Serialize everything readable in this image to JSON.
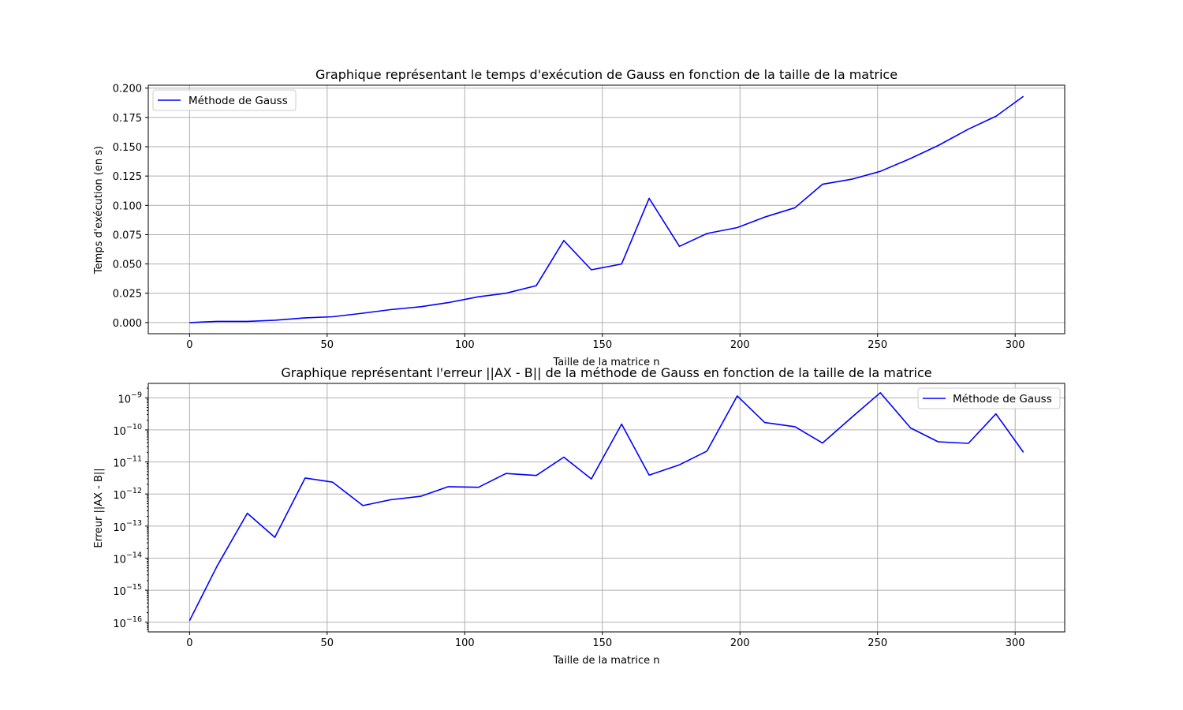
{
  "chart_data": [
    {
      "type": "line",
      "title": "Graphique représentant le temps d'exécution de Gauss en fonction de la taille de la matrice",
      "xlabel": "Taille de la matrice n",
      "ylabel": "Temps d'exécution (en s)",
      "xlim": [
        -15,
        318
      ],
      "ylim": [
        -0.0095,
        0.2025
      ],
      "xticks": [
        0,
        50,
        100,
        150,
        200,
        250,
        300
      ],
      "xtick_labels": [
        "0",
        "50",
        "100",
        "150",
        "200",
        "250",
        "300"
      ],
      "yscale": "linear",
      "yticks": [
        0.0,
        0.025,
        0.05,
        0.075,
        0.1,
        0.125,
        0.15,
        0.175,
        0.2
      ],
      "ytick_labels": [
        "0.000",
        "0.025",
        "0.050",
        "0.075",
        "0.100",
        "0.125",
        "0.150",
        "0.175",
        "0.200"
      ],
      "grid": true,
      "legend_position": "upper-left",
      "series": [
        {
          "name": "Méthode de Gauss",
          "color": "#0000ff",
          "x": [
            0,
            10,
            21,
            31,
            42,
            52,
            63,
            73,
            84,
            94,
            105,
            115,
            126,
            136,
            146,
            157,
            167,
            178,
            188,
            199,
            209,
            220,
            230,
            241,
            251,
            262,
            272,
            283,
            293,
            303
          ],
          "y": [
            0.0,
            0.001,
            0.001,
            0.002,
            0.004,
            0.005,
            0.008,
            0.011,
            0.0135,
            0.017,
            0.022,
            0.025,
            0.0315,
            0.07,
            0.045,
            0.05,
            0.106,
            0.065,
            0.076,
            0.081,
            0.09,
            0.098,
            0.118,
            0.1225,
            0.129,
            0.14,
            0.151,
            0.165,
            0.176,
            0.193
          ]
        }
      ]
    },
    {
      "type": "line",
      "title": "Graphique représentant l'erreur ||AX - B|| de la méthode de Gauss en fonction de la taille de la matrice",
      "xlabel": "Taille de la matrice n",
      "ylabel": "Erreur ||AX - B||",
      "xlim": [
        -15,
        318
      ],
      "ylim_exponent": [
        -16.3,
        -8.55
      ],
      "xticks": [
        0,
        50,
        100,
        150,
        200,
        250,
        300
      ],
      "xtick_labels": [
        "0",
        "50",
        "100",
        "150",
        "200",
        "250",
        "300"
      ],
      "yscale": "log",
      "ytick_exponents": [
        -16,
        -15,
        -14,
        -13,
        -12,
        -11,
        -10,
        -9
      ],
      "ytick_base": "10",
      "grid": true,
      "legend_position": "upper-right",
      "series": [
        {
          "name": "Méthode de Gauss",
          "color": "#0000ff",
          "x": [
            0,
            10,
            21,
            31,
            42,
            52,
            63,
            73,
            84,
            94,
            105,
            115,
            126,
            136,
            146,
            157,
            167,
            178,
            188,
            199,
            209,
            220,
            230,
            241,
            251,
            262,
            272,
            283,
            293,
            303
          ],
          "y_exponent": [
            -15.95,
            -14.25,
            -12.6,
            -13.35,
            -11.5,
            -11.63,
            -12.36,
            -12.18,
            -12.07,
            -11.77,
            -11.79,
            -11.36,
            -11.42,
            -10.85,
            -11.53,
            -9.82,
            -11.41,
            -11.09,
            -10.66,
            -8.94,
            -9.77,
            -9.9,
            -10.41,
            -9.58,
            -8.84,
            -9.94,
            -10.37,
            -10.42,
            -9.5,
            -10.7
          ]
        }
      ]
    }
  ]
}
